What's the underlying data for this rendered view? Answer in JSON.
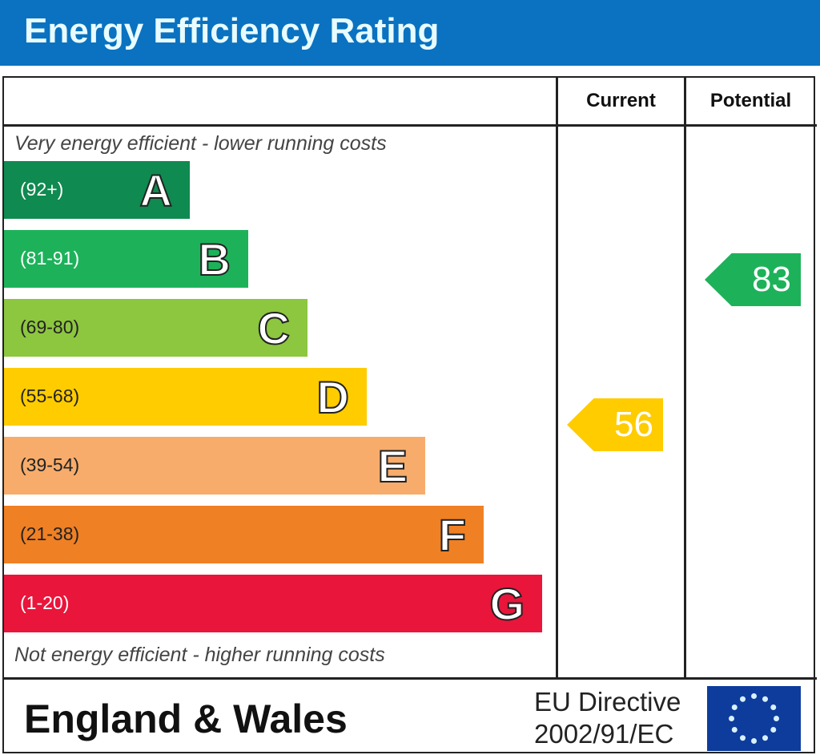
{
  "title": "Energy Efficiency Rating",
  "columns": {
    "current": "Current",
    "potential": "Potential"
  },
  "top_note": "Very energy efficient - lower running costs",
  "bottom_note": "Not energy efficient - higher running costs",
  "footer": {
    "region": "England & Wales",
    "directive_line1": "EU Directive",
    "directive_line2": "2002/91/EC",
    "flag_icon": "eu-flag-icon"
  },
  "chart_data": {
    "type": "bar",
    "categories": [
      "A",
      "B",
      "C",
      "D",
      "E",
      "F",
      "G"
    ],
    "bands": [
      {
        "letter": "A",
        "range": "(92+)",
        "color": "#0f8a50"
      },
      {
        "letter": "B",
        "range": "(81-91)",
        "color": "#1db25a"
      },
      {
        "letter": "C",
        "range": "(69-80)",
        "color": "#8dc63f"
      },
      {
        "letter": "D",
        "range": "(55-68)",
        "color": "#ffcc00"
      },
      {
        "letter": "E",
        "range": "(39-54)",
        "color": "#f7ac6b"
      },
      {
        "letter": "F",
        "range": "(21-38)",
        "color": "#f08024"
      },
      {
        "letter": "G",
        "range": "(1-20)",
        "color": "#e9153b"
      }
    ],
    "current": {
      "value": "56",
      "band": "D",
      "color": "#ffcc00"
    },
    "potential": {
      "value": "83",
      "band": "B",
      "color": "#1db25a"
    }
  }
}
